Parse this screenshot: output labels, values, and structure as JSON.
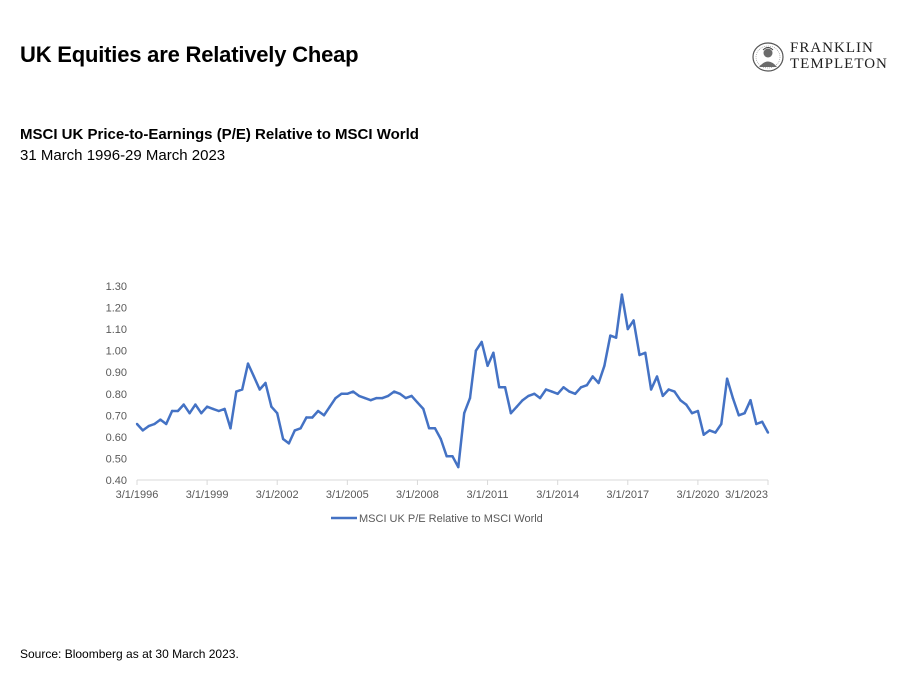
{
  "header": {
    "title": "UK Equities are Relatively Cheap",
    "logo": {
      "line1": "FRANKLIN",
      "line2": "TEMPLETON",
      "icon": "portrait-seal-icon"
    }
  },
  "chart_header": {
    "title": "MSCI UK Price-to-Earnings (P/E) Relative to MSCI World",
    "subtitle": "31 March 1996-29 March 2023"
  },
  "footer": {
    "source": "Source: Bloomberg as at 30 March 2023."
  },
  "colors": {
    "series": "#4472c4",
    "axis": "#d9d9d9",
    "text": "#595959"
  },
  "chart_data": {
    "type": "line",
    "title": "MSCI UK Price-to-Earnings (P/E) Relative to MSCI World",
    "xlabel": "",
    "ylabel": "",
    "ylim": [
      0.4,
      1.3
    ],
    "yticks": [
      "1.30",
      "1.20",
      "1.10",
      "1.00",
      "0.90",
      "0.80",
      "0.70",
      "0.60",
      "0.50",
      "0.40"
    ],
    "xticks": [
      "3/1/1996",
      "3/1/1999",
      "3/1/2002",
      "3/1/2005",
      "3/1/2008",
      "3/1/2011",
      "3/1/2014",
      "3/1/2017",
      "3/1/2020",
      "3/1/2023"
    ],
    "grid": false,
    "legend": "bottom",
    "series": [
      {
        "name": "MSCI UK P/E Relative to MSCI World",
        "x": [
          1996.17,
          1996.42,
          1996.67,
          1996.92,
          1997.17,
          1997.42,
          1997.67,
          1997.92,
          1998.17,
          1998.42,
          1998.67,
          1998.92,
          1999.17,
          1999.42,
          1999.67,
          1999.92,
          2000.17,
          2000.42,
          2000.67,
          2000.92,
          2001.17,
          2001.42,
          2001.67,
          2001.92,
          2002.17,
          2002.42,
          2002.67,
          2002.92,
          2003.17,
          2003.42,
          2003.67,
          2003.92,
          2004.17,
          2004.42,
          2004.67,
          2004.92,
          2005.17,
          2005.42,
          2005.67,
          2005.92,
          2006.17,
          2006.42,
          2006.67,
          2006.92,
          2007.17,
          2007.42,
          2007.67,
          2007.92,
          2008.17,
          2008.42,
          2008.67,
          2008.92,
          2009.17,
          2009.42,
          2009.67,
          2009.92,
          2010.17,
          2010.42,
          2010.67,
          2010.92,
          2011.17,
          2011.42,
          2011.67,
          2011.92,
          2012.17,
          2012.42,
          2012.67,
          2012.92,
          2013.17,
          2013.42,
          2013.67,
          2013.92,
          2014.17,
          2014.42,
          2014.67,
          2014.92,
          2015.17,
          2015.42,
          2015.67,
          2015.92,
          2016.17,
          2016.42,
          2016.67,
          2016.92,
          2017.17,
          2017.42,
          2017.67,
          2017.92,
          2018.17,
          2018.42,
          2018.67,
          2018.92,
          2019.17,
          2019.42,
          2019.67,
          2019.92,
          2020.17,
          2020.42,
          2020.67,
          2020.92,
          2021.17,
          2021.42,
          2021.67,
          2021.92,
          2022.17,
          2022.42,
          2022.67,
          2022.92,
          2023.17
        ],
        "values": [
          0.66,
          0.63,
          0.65,
          0.66,
          0.68,
          0.66,
          0.72,
          0.72,
          0.75,
          0.71,
          0.75,
          0.71,
          0.74,
          0.73,
          0.72,
          0.73,
          0.64,
          0.81,
          0.82,
          0.94,
          0.88,
          0.82,
          0.85,
          0.74,
          0.71,
          0.59,
          0.57,
          0.63,
          0.64,
          0.69,
          0.69,
          0.72,
          0.7,
          0.74,
          0.78,
          0.8,
          0.8,
          0.81,
          0.79,
          0.78,
          0.77,
          0.78,
          0.78,
          0.79,
          0.81,
          0.8,
          0.78,
          0.79,
          0.76,
          0.73,
          0.64,
          0.64,
          0.59,
          0.51,
          0.51,
          0.46,
          0.71,
          0.78,
          1.0,
          1.04,
          0.93,
          0.99,
          0.83,
          0.83,
          0.71,
          0.74,
          0.77,
          0.79,
          0.8,
          0.78,
          0.82,
          0.81,
          0.8,
          0.83,
          0.81,
          0.8,
          0.83,
          0.84,
          0.88,
          0.85,
          0.93,
          1.07,
          1.06,
          1.26,
          1.1,
          1.14,
          0.98,
          0.99,
          0.82,
          0.88,
          0.79,
          0.82,
          0.81,
          0.77,
          0.75,
          0.71,
          0.72,
          0.61,
          0.63,
          0.62,
          0.66,
          0.87,
          0.78,
          0.7,
          0.71,
          0.77,
          0.66,
          0.67,
          0.62
        ]
      }
    ]
  }
}
